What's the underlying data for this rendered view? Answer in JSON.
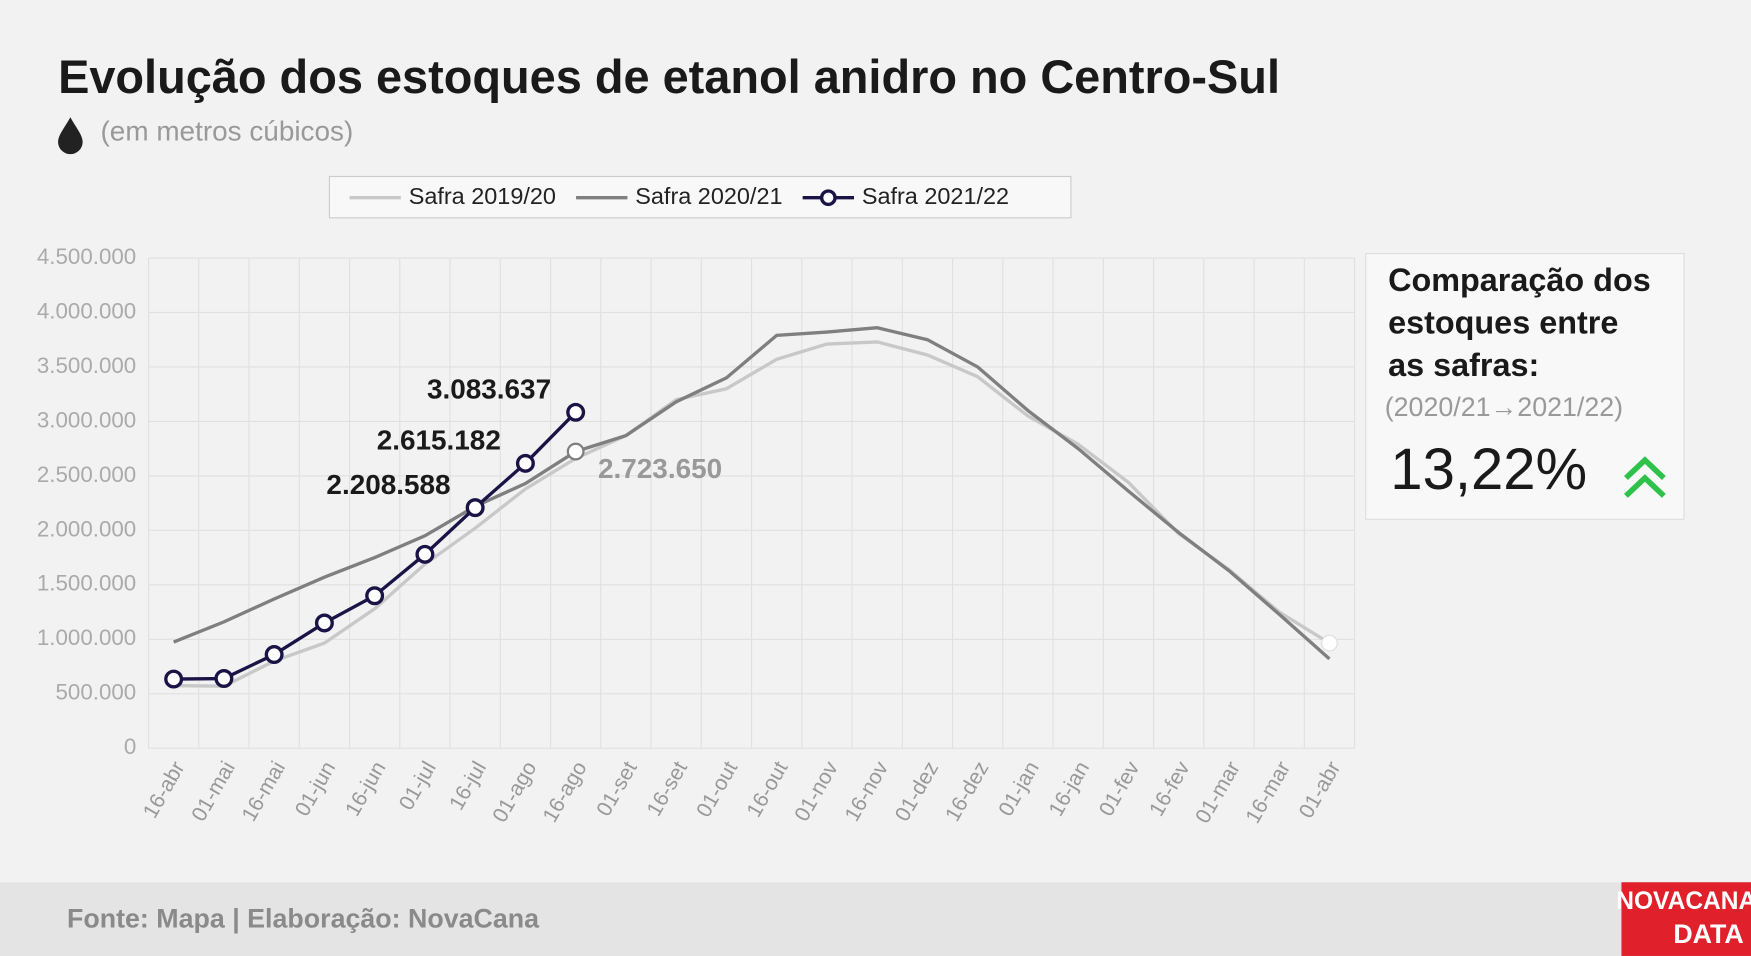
{
  "chart_data": {
    "type": "line",
    "title": "Evolução dos estoques de etanol anidro no Centro-Sul",
    "subtitle": "(em metros cúbicos)",
    "categories": [
      "16-abr",
      "01-mai",
      "16-mai",
      "01-jun",
      "16-jun",
      "01-jul",
      "16-jul",
      "01-ago",
      "16-ago",
      "01-set",
      "16-set",
      "01-out",
      "16-out",
      "01-nov",
      "16-nov",
      "01-dez",
      "16-dez",
      "01-jan",
      "16-jan",
      "01-fev",
      "16-fev",
      "01-mar",
      "16-mar",
      "01-abr"
    ],
    "series": [
      {
        "name": "Safra 2019/20",
        "color": "#c8c8c8",
        "values": [
          575000,
          570000,
          800000,
          965000,
          1280000,
          1690000,
          2020000,
          2380000,
          2660000,
          2870000,
          3200000,
          3300000,
          3570000,
          3710000,
          3730000,
          3610000,
          3410000,
          3050000,
          2790000,
          2440000,
          1970000,
          1640000,
          1250000,
          965000
        ]
      },
      {
        "name": "Safra 2020/21",
        "color": "#7f7f7f",
        "values": [
          975000,
          1160000,
          1370000,
          1570000,
          1750000,
          1950000,
          2220000,
          2430000,
          2723650,
          2870000,
          3180000,
          3400000,
          3790000,
          3820000,
          3860000,
          3750000,
          3500000,
          3100000,
          2750000,
          2360000,
          1980000,
          1630000,
          1230000,
          820000
        ],
        "value_labels": [
          null,
          null,
          null,
          null,
          null,
          null,
          null,
          null,
          "2.723.650",
          null,
          null,
          null,
          null,
          null,
          null,
          null,
          null,
          null,
          null,
          null,
          null,
          null,
          null,
          null
        ]
      },
      {
        "name": "Safra 2021/22",
        "color": "#1a1446",
        "markers": true,
        "values": [
          635000,
          640000,
          860000,
          1150000,
          1400000,
          1780000,
          2208588,
          2615182,
          3083637,
          null,
          null,
          null,
          null,
          null,
          null,
          null,
          null,
          null,
          null,
          null,
          null,
          null,
          null,
          null
        ],
        "value_labels": [
          null,
          null,
          null,
          null,
          null,
          null,
          "2.208.588",
          "2.615.182",
          "3.083.637",
          null,
          null,
          null,
          null,
          null,
          null,
          null,
          null,
          null,
          null,
          null,
          null,
          null,
          null,
          null
        ]
      }
    ],
    "ylim": [
      0,
      4500000
    ],
    "yticks": [
      0,
      {
        "value": 500000,
        "label": "500.000"
      },
      {
        "value": 1000000,
        "label": "1.000.000"
      },
      {
        "value": 1500000,
        "label": "1.500.000"
      },
      {
        "value": 2000000,
        "label": "2.000.000"
      },
      {
        "value": 2500000,
        "label": "2.500.000"
      },
      {
        "value": 3000000,
        "label": "3.000.000"
      },
      {
        "value": 3500000,
        "label": "3.500.000"
      },
      {
        "value": 4000000,
        "label": "4.000.000"
      },
      {
        "value": 4500000,
        "label": "4.500.000"
      }
    ],
    "grid": true,
    "legend": "top"
  },
  "panel": {
    "title_lines": [
      "Comparação dos",
      "estoques entre",
      "as safras:"
    ],
    "subtitle": "(2020/21→2021/22)",
    "value": "13,22%"
  },
  "footer": {
    "source": "Fonte: Mapa | Elaboração: NovaCana",
    "logo_lines": [
      "NOVACANA",
      "DATA"
    ]
  }
}
